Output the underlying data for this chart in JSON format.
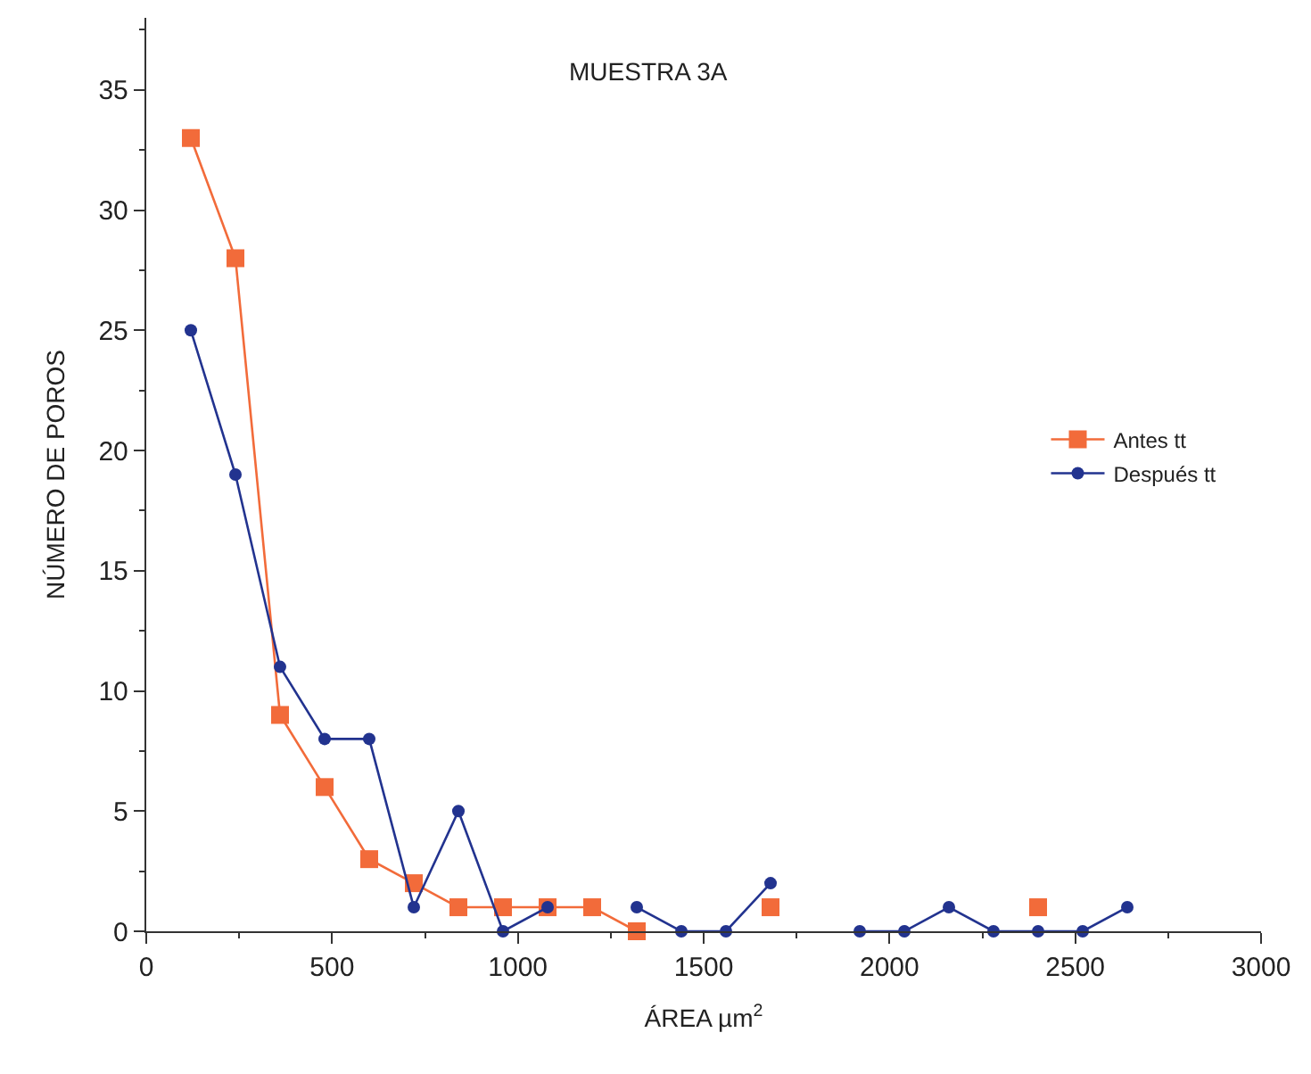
{
  "chart_data": {
    "type": "line",
    "title": "MUESTRA 3A",
    "xlabel": "ÁREA µm$^{2}$",
    "ylabel": "NÚMERO DE POROS",
    "x": [
      120,
      240,
      360,
      480,
      600,
      720,
      840,
      960,
      1080,
      1200,
      1320,
      1440,
      1560,
      1680,
      1800,
      1920,
      2040,
      2160,
      2280,
      2400,
      2520,
      2640
    ],
    "series": [
      {
        "name": "Antes tt",
        "color": "#f26b3a",
        "marker": "square",
        "values": [
          33,
          28,
          9,
          6,
          3,
          2,
          1,
          1,
          1,
          1,
          0,
          null,
          null,
          1,
          null,
          null,
          null,
          null,
          null,
          1,
          null,
          null
        ]
      },
      {
        "name": "Después tt",
        "color": "#22338f",
        "marker": "circle",
        "values": [
          25,
          19,
          11,
          8,
          8,
          1,
          5,
          0,
          1,
          null,
          1,
          0,
          0,
          2,
          null,
          0,
          0,
          1,
          0,
          0,
          0,
          1
        ]
      }
    ],
    "xlim": [
      0,
      3000
    ],
    "xticks": [
      0,
      500,
      1000,
      1500,
      2000,
      2500,
      3000
    ],
    "ylim": [
      0,
      38
    ],
    "yticks": [
      0,
      5,
      10,
      15,
      20,
      25,
      30,
      35
    ],
    "legend": "right",
    "line_style": "solid"
  }
}
